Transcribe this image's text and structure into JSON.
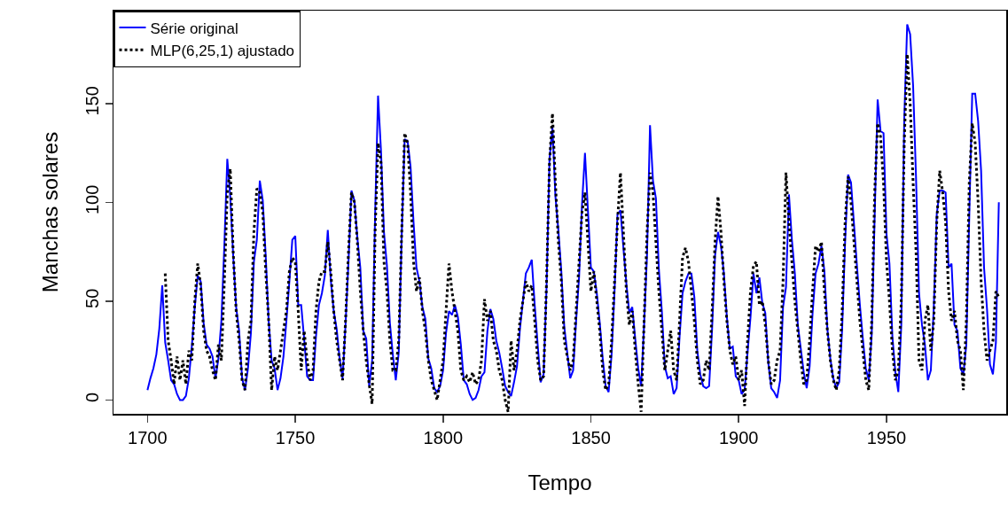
{
  "chart_data": {
    "type": "line",
    "xlabel": "Tempo",
    "ylabel": "Manchas solares",
    "x": [
      1700,
      1701,
      1702,
      1703,
      1704,
      1705,
      1706,
      1707,
      1708,
      1709,
      1710,
      1711,
      1712,
      1713,
      1714,
      1715,
      1716,
      1717,
      1718,
      1719,
      1720,
      1721,
      1722,
      1723,
      1724,
      1725,
      1726,
      1727,
      1728,
      1729,
      1730,
      1731,
      1732,
      1733,
      1734,
      1735,
      1736,
      1737,
      1738,
      1739,
      1740,
      1741,
      1742,
      1743,
      1744,
      1745,
      1746,
      1747,
      1748,
      1749,
      1750,
      1751,
      1752,
      1753,
      1754,
      1755,
      1756,
      1757,
      1758,
      1759,
      1760,
      1761,
      1762,
      1763,
      1764,
      1765,
      1766,
      1767,
      1768,
      1769,
      1770,
      1771,
      1772,
      1773,
      1774,
      1775,
      1776,
      1777,
      1778,
      1779,
      1780,
      1781,
      1782,
      1783,
      1784,
      1785,
      1786,
      1787,
      1788,
      1789,
      1790,
      1791,
      1792,
      1793,
      1794,
      1795,
      1796,
      1797,
      1798,
      1799,
      1800,
      1801,
      1802,
      1803,
      1804,
      1805,
      1806,
      1807,
      1808,
      1809,
      1810,
      1811,
      1812,
      1813,
      1814,
      1815,
      1816,
      1817,
      1818,
      1819,
      1820,
      1821,
      1822,
      1823,
      1824,
      1825,
      1826,
      1827,
      1828,
      1829,
      1830,
      1831,
      1832,
      1833,
      1834,
      1835,
      1836,
      1837,
      1838,
      1839,
      1840,
      1841,
      1842,
      1843,
      1844,
      1845,
      1846,
      1847,
      1848,
      1849,
      1850,
      1851,
      1852,
      1853,
      1854,
      1855,
      1856,
      1857,
      1858,
      1859,
      1860,
      1861,
      1862,
      1863,
      1864,
      1865,
      1866,
      1867,
      1868,
      1869,
      1870,
      1871,
      1872,
      1873,
      1874,
      1875,
      1876,
      1877,
      1878,
      1879,
      1880,
      1881,
      1882,
      1883,
      1884,
      1885,
      1886,
      1887,
      1888,
      1889,
      1890,
      1891,
      1892,
      1893,
      1894,
      1895,
      1896,
      1897,
      1898,
      1899,
      1900,
      1901,
      1902,
      1903,
      1904,
      1905,
      1906,
      1907,
      1908,
      1909,
      1910,
      1911,
      1912,
      1913,
      1914,
      1915,
      1916,
      1917,
      1918,
      1919,
      1920,
      1921,
      1922,
      1923,
      1924,
      1925,
      1926,
      1927,
      1928,
      1929,
      1930,
      1931,
      1932,
      1933,
      1934,
      1935,
      1936,
      1937,
      1938,
      1939,
      1940,
      1941,
      1942,
      1943,
      1944,
      1945,
      1946,
      1947,
      1948,
      1949,
      1950,
      1951,
      1952,
      1953,
      1954,
      1955,
      1956,
      1957,
      1958,
      1959,
      1960,
      1961,
      1962,
      1963,
      1964,
      1965,
      1966,
      1967,
      1968,
      1969,
      1970,
      1971,
      1972,
      1973,
      1974,
      1975,
      1976,
      1977,
      1978,
      1979,
      1980,
      1981,
      1982,
      1983,
      1984,
      1985,
      1986,
      1987,
      1988
    ],
    "series": [
      {
        "name": "Série original",
        "color": "#0000ff",
        "line_style": "solid",
        "values": [
          5,
          11,
          16,
          23,
          36,
          58,
          29,
          20,
          10,
          8,
          3,
          0,
          0,
          2,
          11,
          27,
          47,
          63,
          60,
          39,
          28,
          26,
          22,
          11,
          21,
          40,
          78,
          122,
          103,
          73,
          47,
          35,
          11,
          5,
          16,
          34,
          70,
          81,
          111,
          101,
          73,
          40,
          20,
          16,
          5,
          11,
          22,
          40,
          60,
          81,
          83,
          48,
          48,
          31,
          12,
          10,
          10,
          32,
          48,
          54,
          63,
          86,
          61,
          45,
          36,
          21,
          11,
          38,
          70,
          106,
          101,
          82,
          67,
          35,
          31,
          7,
          20,
          93,
          154,
          126,
          85,
          68,
          39,
          23,
          10,
          24,
          83,
          132,
          131,
          118,
          90,
          67,
          60,
          47,
          41,
          21,
          16,
          6,
          4,
          7,
          15,
          34,
          45,
          43,
          48,
          42,
          28,
          10,
          8,
          3,
          0,
          1,
          5,
          12,
          14,
          35,
          46,
          41,
          30,
          24,
          16,
          7,
          4,
          2,
          9,
          17,
          36,
          50,
          64,
          67,
          71,
          48,
          28,
          9,
          13,
          57,
          122,
          138,
          103,
          86,
          65,
          37,
          24,
          11,
          15,
          40,
          62,
          99,
          125,
          96,
          67,
          65,
          54,
          39,
          21,
          7,
          4,
          23,
          55,
          94,
          96,
          77,
          59,
          44,
          47,
          31,
          16,
          7,
          38,
          74,
          139,
          111,
          102,
          66,
          45,
          17,
          11,
          12,
          3,
          6,
          32,
          54,
          60,
          64,
          64,
          52,
          25,
          13,
          7,
          6,
          7,
          36,
          73,
          85,
          78,
          64,
          42,
          26,
          27,
          12,
          10,
          3,
          5,
          24,
          42,
          64,
          54,
          62,
          49,
          44,
          19,
          6,
          4,
          1,
          10,
          47,
          57,
          104,
          81,
          64,
          38,
          26,
          14,
          6,
          17,
          44,
          64,
          69,
          78,
          65,
          36,
          21,
          11,
          6,
          9,
          36,
          80,
          114,
          110,
          89,
          68,
          48,
          31,
          16,
          10,
          33,
          93,
          152,
          136,
          135,
          84,
          69,
          32,
          14,
          4,
          38,
          142,
          190,
          185,
          159,
          112,
          54,
          38,
          28,
          10,
          15,
          47,
          94,
          106,
          106,
          105,
          67,
          69,
          38,
          35,
          16,
          13,
          28,
          93,
          155,
          155,
          141,
          116,
          67,
          46,
          18,
          13,
          29,
          100
        ]
      },
      {
        "name": "MLP(6,25,1) ajustado",
        "color": "#000000",
        "line_style": "dotted",
        "values": [
          null,
          null,
          null,
          null,
          null,
          null,
          64,
          30,
          20,
          8,
          22,
          10,
          20,
          8,
          25,
          20,
          50,
          69,
          58,
          35,
          25,
          22,
          15,
          10,
          28,
          20,
          60,
          105,
          117,
          75,
          45,
          30,
          10,
          5,
          30,
          40,
          85,
          107,
          105,
          95,
          65,
          40,
          5,
          22,
          15,
          25,
          35,
          45,
          65,
          72,
          70,
          45,
          15,
          35,
          20,
          10,
          15,
          45,
          60,
          65,
          65,
          80,
          65,
          45,
          30,
          20,
          10,
          40,
          75,
          105,
          100,
          80,
          55,
          35,
          20,
          8,
          -2,
          85,
          130,
          120,
          70,
          55,
          30,
          15,
          15,
          30,
          85,
          135,
          130,
          105,
          70,
          55,
          62,
          45,
          35,
          20,
          10,
          5,
          0,
          10,
          20,
          45,
          69,
          55,
          45,
          35,
          15,
          10,
          12,
          9,
          14,
          8,
          10,
          20,
          51,
          40,
          45,
          30,
          25,
          15,
          10,
          0,
          -6,
          30,
          15,
          25,
          40,
          50,
          60,
          55,
          58,
          40,
          20,
          10,
          12,
          60,
          120,
          145,
          110,
          80,
          60,
          30,
          22,
          15,
          20,
          45,
          70,
          95,
          105,
          80,
          55,
          65,
          50,
          35,
          15,
          5,
          8,
          30,
          60,
          90,
          115,
          85,
          55,
          38,
          45,
          25,
          8,
          -6,
          40,
          85,
          115,
          105,
          80,
          55,
          35,
          15,
          25,
          35,
          15,
          10,
          40,
          72,
          77,
          70,
          55,
          40,
          20,
          8,
          10,
          20,
          15,
          45,
          80,
          103,
          85,
          60,
          40,
          25,
          18,
          22,
          10,
          15,
          -3,
          30,
          55,
          68,
          70,
          48,
          50,
          38,
          20,
          8,
          10,
          20,
          25,
          60,
          115,
          90,
          70,
          50,
          35,
          20,
          8,
          10,
          30,
          55,
          78,
          75,
          80,
          55,
          35,
          20,
          10,
          5,
          15,
          45,
          90,
          113,
          100,
          80,
          60,
          40,
          25,
          10,
          5,
          40,
          105,
          140,
          133,
          110,
          70,
          50,
          25,
          10,
          15,
          50,
          130,
          175,
          150,
          110,
          75,
          20,
          15,
          40,
          48,
          25,
          40,
          90,
          116,
          105,
          90,
          55,
          40,
          45,
          30,
          25,
          5,
          40,
          110,
          140,
          130,
          100,
          60,
          35,
          20,
          25,
          30,
          55,
          52
        ]
      }
    ],
    "xlim": [
      1688.5,
      1990.5
    ],
    "ylim": [
      -7,
      197
    ],
    "xticks": [
      1700,
      1750,
      1800,
      1850,
      1900,
      1950
    ],
    "yticks": [
      0,
      50,
      100,
      150
    ],
    "grid": false,
    "legend": "top left"
  }
}
